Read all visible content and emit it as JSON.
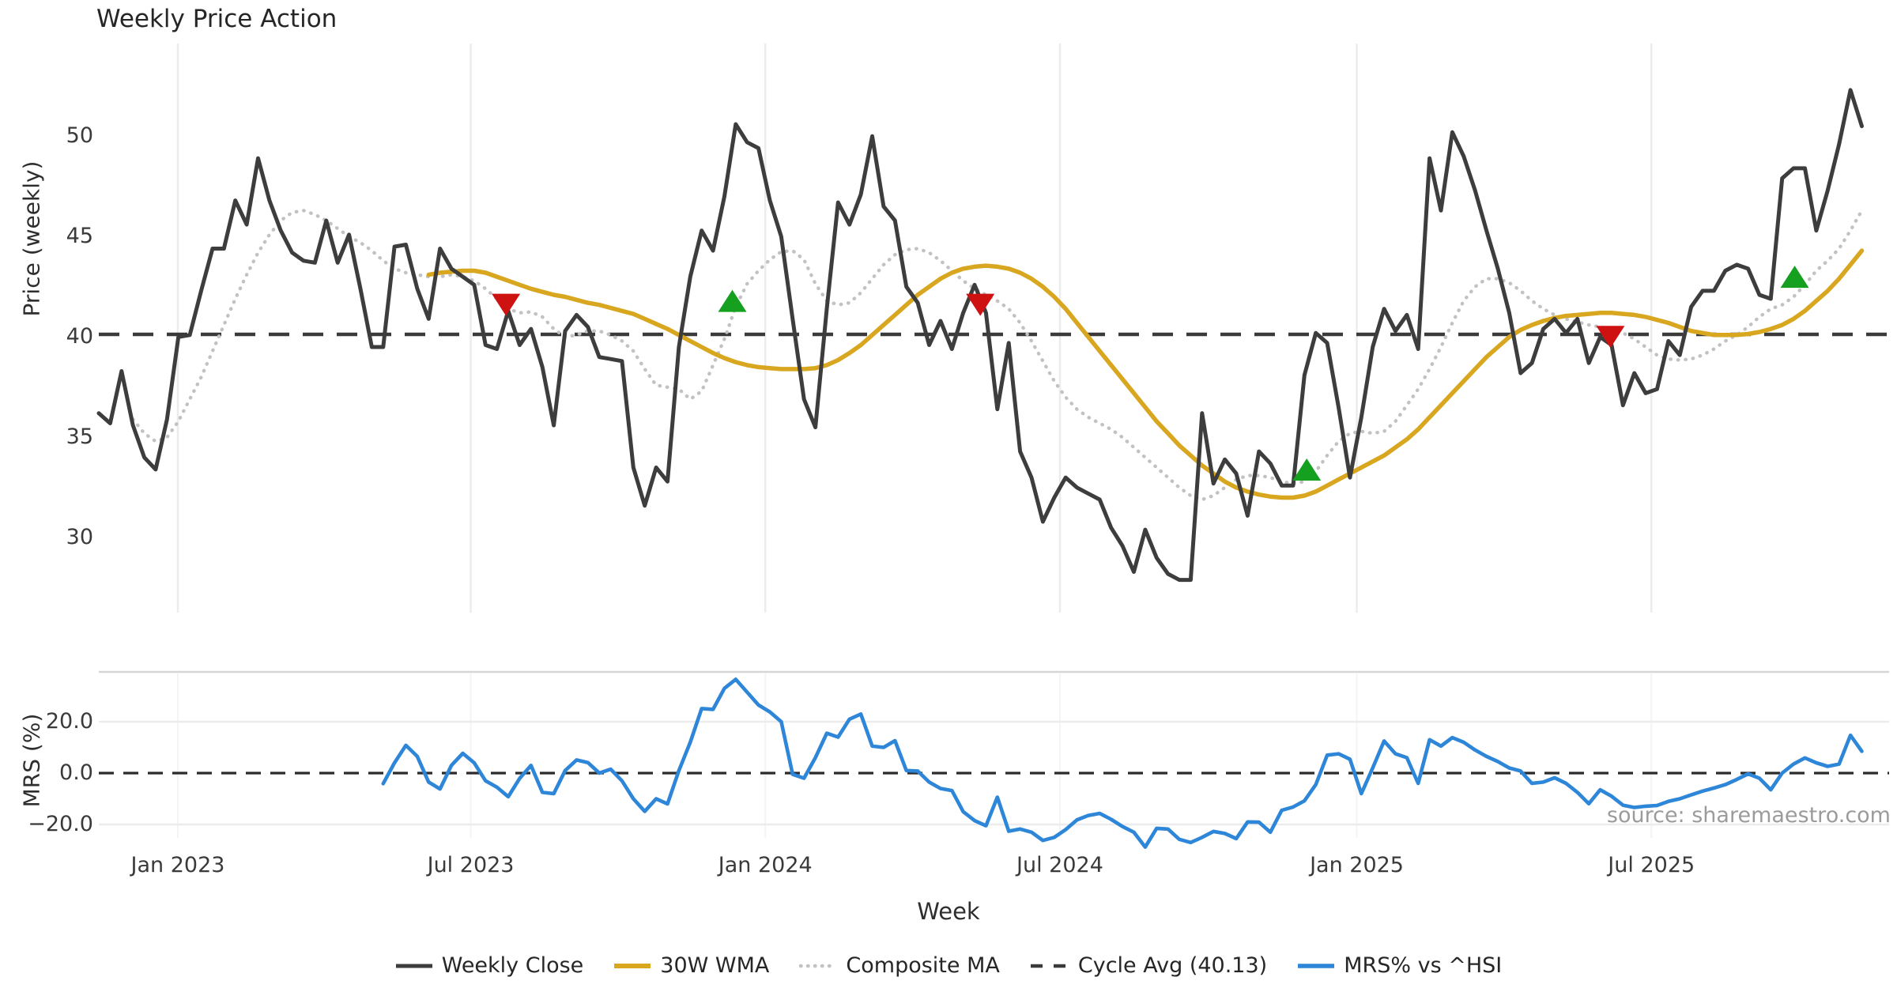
{
  "title": "Weekly Price Action",
  "xlabel": "Week",
  "source": "source: sharemaestro.com",
  "legend": {
    "items": [
      "Weekly Close",
      "30W WMA",
      "Composite MA",
      "Cycle Avg (40.13)",
      "MRS% vs ^HSI"
    ]
  },
  "colors": {
    "weekly_close": "#3d3d3d",
    "wma": "#d8a61f",
    "composite": "#c2c2c2",
    "cycle_avg": "#3a3a3a",
    "mrs": "#2e86d8",
    "buy": "#16a01f",
    "sell": "#ce1212",
    "grid": "#ececec",
    "grid_faint": "#f4f4f4",
    "panel_spine": "#d6d6d6",
    "zero_line": "#2b2b2b"
  },
  "chart_data": [
    {
      "type": "line",
      "panel": "price",
      "x_unit": "week_index",
      "x_range_weeks": [
        0,
        155
      ],
      "ylabel": "Price (weekly)",
      "yticks": [
        50,
        45,
        40,
        35,
        30
      ],
      "ylim": [
        26.5,
        53.8
      ],
      "grid": "vertical-month-lines",
      "legend_position": "bottom-center",
      "cycle_avg": 40.13,
      "xticks": [
        {
          "week": 6.95,
          "label": "Jan 2023"
        },
        {
          "week": 32.7,
          "label": "Jul 2023"
        },
        {
          "week": 58.6,
          "label": "Jan 2024"
        },
        {
          "week": 84.5,
          "label": "Jul 2024"
        },
        {
          "week": 110.6,
          "label": "Jan 2025"
        },
        {
          "week": 136.5,
          "label": "Jul 2025"
        }
      ],
      "series": [
        {
          "name": "Weekly Close",
          "start_week": 0,
          "values": [
            36.2,
            35.7,
            38.3,
            35.6,
            34.0,
            33.4,
            35.9,
            40.0,
            40.1,
            42.3,
            44.4,
            44.4,
            46.8,
            45.6,
            48.9,
            46.8,
            45.3,
            44.2,
            43.8,
            43.7,
            45.8,
            43.7,
            45.1,
            42.4,
            39.5,
            39.5,
            44.5,
            44.6,
            42.4,
            40.9,
            44.4,
            43.4,
            43.0,
            42.6,
            39.6,
            39.4,
            41.3,
            39.6,
            40.4,
            38.5,
            35.6,
            40.3,
            41.1,
            40.5,
            39.0,
            38.9,
            38.8,
            33.5,
            31.6,
            33.5,
            32.8,
            39.5,
            43.0,
            45.3,
            44.3,
            47.0,
            50.6,
            49.7,
            49.4,
            46.8,
            45.0,
            40.9,
            36.9,
            35.5,
            41.4,
            46.7,
            45.6,
            47.1,
            50.0,
            46.5,
            45.8,
            42.5,
            41.7,
            39.6,
            40.8,
            39.4,
            41.2,
            42.6,
            41.2,
            36.4,
            39.7,
            34.3,
            33.0,
            30.8,
            32.0,
            33.0,
            32.5,
            32.2,
            31.9,
            30.5,
            29.6,
            28.3,
            30.4,
            29.0,
            28.2,
            27.9,
            27.9,
            36.2,
            32.7,
            33.9,
            33.2,
            31.1,
            34.3,
            33.7,
            32.6,
            32.6,
            38.1,
            40.2,
            39.7,
            36.5,
            33.0,
            36.0,
            39.5,
            41.4,
            40.3,
            41.1,
            39.4,
            48.9,
            46.3,
            50.2,
            49.0,
            47.3,
            45.3,
            43.4,
            41.2,
            38.2,
            38.7,
            40.4,
            40.9,
            40.2,
            40.9,
            38.7,
            40.0,
            39.6,
            36.6,
            38.2,
            37.2,
            37.4,
            39.8,
            39.1,
            41.5,
            42.3,
            42.3,
            43.3,
            43.6,
            43.4,
            42.1,
            41.9,
            47.9,
            48.4,
            48.4,
            45.3,
            47.3,
            49.6,
            52.3,
            50.5
          ]
        },
        {
          "name": "30W WMA",
          "start_week": 29,
          "values": [
            43.1,
            43.2,
            43.25,
            43.3,
            43.3,
            43.2,
            43.0,
            42.8,
            42.6,
            42.4,
            42.25,
            42.1,
            42.0,
            41.85,
            41.7,
            41.6,
            41.45,
            41.3,
            41.15,
            40.9,
            40.65,
            40.4,
            40.1,
            39.8,
            39.5,
            39.2,
            38.95,
            38.75,
            38.6,
            38.5,
            38.45,
            38.4,
            38.4,
            38.4,
            38.45,
            38.6,
            38.85,
            39.2,
            39.6,
            40.1,
            40.6,
            41.1,
            41.6,
            42.1,
            42.5,
            42.9,
            43.2,
            43.4,
            43.5,
            43.55,
            43.5,
            43.4,
            43.2,
            42.9,
            42.5,
            42.0,
            41.4,
            40.7,
            40.0,
            39.3,
            38.6,
            37.9,
            37.2,
            36.5,
            35.8,
            35.2,
            34.6,
            34.1,
            33.6,
            33.2,
            32.8,
            32.5,
            32.3,
            32.15,
            32.05,
            32.0,
            32.0,
            32.1,
            32.3,
            32.6,
            32.9,
            33.2,
            33.5,
            33.8,
            34.1,
            34.5,
            34.9,
            35.4,
            36.0,
            36.6,
            37.2,
            37.8,
            38.4,
            39.0,
            39.5,
            40.0,
            40.35,
            40.6,
            40.8,
            40.95,
            41.05,
            41.1,
            41.15,
            41.2,
            41.2,
            41.15,
            41.1,
            41.0,
            40.85,
            40.7,
            40.5,
            40.3,
            40.2,
            40.1,
            40.1,
            40.1,
            40.15,
            40.25,
            40.4,
            40.6,
            40.9,
            41.3,
            41.8,
            42.3,
            42.9,
            43.6,
            44.3
          ]
        },
        {
          "name": "Composite MA",
          "start_week": 3,
          "values": [
            35.9,
            35.2,
            34.8,
            35.0,
            35.8,
            36.9,
            38.0,
            39.3,
            40.6,
            41.9,
            43.1,
            44.2,
            45.1,
            45.8,
            46.2,
            46.3,
            46.1,
            45.8,
            45.4,
            45.0,
            44.7,
            44.3,
            43.8,
            43.4,
            43.2,
            43.1,
            43.0,
            43.0,
            43.1,
            43.0,
            42.8,
            42.4,
            41.9,
            41.4,
            41.2,
            41.25,
            41.0,
            40.4,
            40.0,
            40.1,
            40.3,
            40.3,
            40.1,
            39.8,
            39.3,
            38.4,
            37.6,
            37.5,
            37.4,
            36.9,
            37.3,
            38.6,
            39.9,
            41.5,
            42.65,
            43.3,
            43.85,
            44.25,
            44.3,
            43.85,
            42.65,
            41.8,
            41.6,
            41.7,
            42.2,
            42.9,
            43.6,
            44.1,
            44.35,
            44.4,
            44.2,
            43.8,
            43.3,
            42.8,
            42.4,
            42.1,
            41.8,
            41.4,
            40.7,
            39.8,
            38.8,
            37.8,
            37.0,
            36.4,
            36.0,
            35.7,
            35.4,
            35.0,
            34.5,
            34.0,
            33.5,
            33.0,
            32.5,
            32.1,
            31.9,
            32.1,
            32.5,
            32.9,
            33.1,
            33.1,
            33.0,
            32.8,
            32.7,
            32.8,
            33.3,
            34.1,
            34.8,
            35.2,
            35.3,
            35.2,
            35.3,
            35.8,
            36.6,
            37.4,
            38.4,
            39.5,
            40.7,
            41.8,
            42.5,
            42.9,
            42.9,
            42.7,
            42.3,
            41.8,
            41.4,
            41.1,
            40.9,
            40.75,
            40.6,
            40.5,
            40.4,
            40.2,
            39.9,
            39.5,
            39.1,
            38.9,
            38.85,
            38.9,
            39.1,
            39.4,
            39.8,
            40.1,
            40.5,
            41.0,
            41.4,
            41.6,
            42.0,
            42.6,
            43.3,
            43.8,
            44.4,
            45.3,
            46.3
          ]
        }
      ],
      "signals": {
        "sell": [
          {
            "week": 35.8,
            "price": 41.6
          },
          {
            "week": 77.5,
            "price": 41.6
          },
          {
            "week": 132.9,
            "price": 40.0
          }
        ],
        "buy": [
          {
            "week": 55.7,
            "price": 41.8
          },
          {
            "week": 106.2,
            "price": 33.4
          },
          {
            "week": 149.1,
            "price": 43.0
          }
        ]
      }
    },
    {
      "type": "line",
      "panel": "mrs",
      "x_unit": "week_index",
      "ylabel": "MRS (%)",
      "yticks": [
        "20.0",
        "0.0",
        "−20.0"
      ],
      "ytick_values": [
        20,
        0,
        -20
      ],
      "ylim": [
        -32,
        40
      ],
      "zero_line": 0,
      "series": [
        {
          "name": "MRS% vs ^HSI",
          "start_week": 25,
          "values": [
            -4.1,
            4.0,
            10.8,
            6.5,
            -3.5,
            -6.2,
            3.0,
            7.7,
            4.0,
            -3.0,
            -5.5,
            -9.2,
            -2.1,
            3.0,
            -7.5,
            -8.0,
            1.0,
            5.1,
            4.1,
            0.0,
            1.5,
            -3.0,
            -10.0,
            -14.9,
            -10.0,
            -12.0,
            1.0,
            12.0,
            25.1,
            24.8,
            33.0,
            36.5,
            31.5,
            26.5,
            23.8,
            20.0,
            -0.5,
            -2.0,
            6.0,
            15.5,
            14.0,
            21.0,
            23.0,
            10.5,
            10.0,
            12.6,
            1.0,
            0.8,
            -3.5,
            -6.0,
            -6.8,
            -15.0,
            -18.5,
            -20.5,
            -9.4,
            -22.6,
            -21.8,
            -23.0,
            -26.2,
            -25.0,
            -22.0,
            -18.2,
            -16.5,
            -15.7,
            -18.0,
            -20.8,
            -23.0,
            -28.8,
            -21.5,
            -21.8,
            -25.8,
            -27.0,
            -25.0,
            -22.7,
            -23.5,
            -25.5,
            -19.0,
            -19.1,
            -23.0,
            -14.5,
            -13.2,
            -10.8,
            -4.5,
            7.0,
            7.5,
            5.4,
            -8.0,
            2.0,
            12.5,
            7.5,
            6.0,
            -4.0,
            13.0,
            10.5,
            13.8,
            12.0,
            9.0,
            6.5,
            4.5,
            2.0,
            0.8,
            -4.0,
            -3.5,
            -1.8,
            -4.0,
            -7.5,
            -11.9,
            -6.5,
            -9.0,
            -12.5,
            -13.4,
            -12.9,
            -12.6,
            -11.0,
            -10.0,
            -8.5,
            -7.0,
            -5.8,
            -4.5,
            -2.5,
            -0.3,
            -2.0,
            -6.5,
            0.0,
            3.5,
            5.9,
            4.0,
            2.6,
            3.5,
            14.7,
            8.5
          ]
        }
      ]
    }
  ]
}
